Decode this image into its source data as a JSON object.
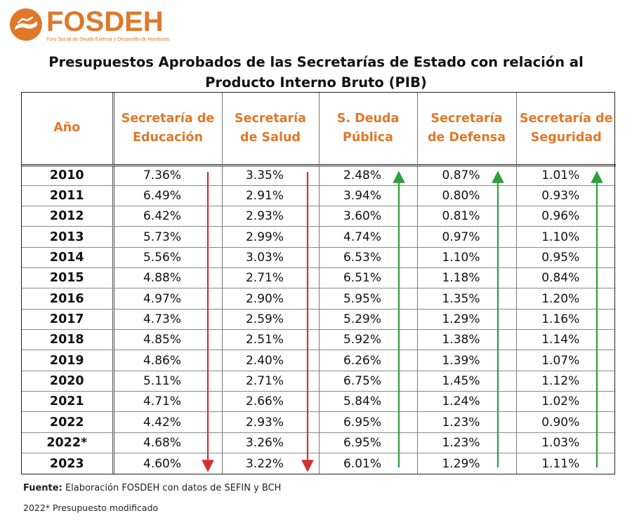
{
  "brand": {
    "name": "FOSDEH",
    "tagline": "Foro Social de Deuda Externa y Desarrollo de Honduras",
    "color": "#e0782a"
  },
  "title_line1": "Presupuestos Aprobados de las Secretarías de Estado con relación al",
  "title_line2": "Producto Interno Bruto (PIB)",
  "table": {
    "headers": [
      [
        "Año"
      ],
      [
        "Secretaría de",
        "Educación"
      ],
      [
        "Secretaría",
        "de Salud"
      ],
      [
        "S. Deuda",
        "Pública"
      ],
      [
        "Secretaría",
        "de Defensa"
      ],
      [
        "Secretaría de",
        "Seguridad"
      ]
    ],
    "rows": [
      [
        "2010",
        "7.36%",
        "3.35%",
        "2.48%",
        "0.87%",
        "1.01%"
      ],
      [
        "2011",
        "6.49%",
        "2.91%",
        "3.94%",
        "0.80%",
        "0.93%"
      ],
      [
        "2012",
        "6.42%",
        "2.93%",
        "3.60%",
        "0.81%",
        "0.96%"
      ],
      [
        "2013",
        "5.73%",
        "2.99%",
        "4.74%",
        "0.97%",
        "1.10%"
      ],
      [
        "2014",
        "5.56%",
        "3.03%",
        "6.53%",
        "1.10%",
        "0.95%"
      ],
      [
        "2015",
        "4.88%",
        "2.71%",
        "6.51%",
        "1.18%",
        "0.84%"
      ],
      [
        "2016",
        "4.97%",
        "2.90%",
        "5.95%",
        "1.35%",
        "1.20%"
      ],
      [
        "2017",
        "4.73%",
        "2.59%",
        "5.29%",
        "1.29%",
        "1.16%"
      ],
      [
        "2018",
        "4.85%",
        "2.51%",
        "5.92%",
        "1.38%",
        "1.14%"
      ],
      [
        "2019",
        "4.86%",
        "2.40%",
        "6.26%",
        "1.39%",
        "1.07%"
      ],
      [
        "2020",
        "5.11%",
        "2.71%",
        "6.75%",
        "1.45%",
        "1.12%"
      ],
      [
        "2021",
        "4.71%",
        "2.66%",
        "5.84%",
        "1.24%",
        "1.02%"
      ],
      [
        "2022",
        "4.42%",
        "2.93%",
        "6.95%",
        "1.23%",
        "0.90%"
      ],
      [
        "2022*",
        "4.68%",
        "3.26%",
        "6.95%",
        "1.23%",
        "1.03%"
      ],
      [
        "2023",
        "4.60%",
        "3.22%",
        "6.01%",
        "1.29%",
        "1.11%"
      ]
    ],
    "trend_arrows": [
      {
        "column": "Secretaría de Educación",
        "direction": "down",
        "color": "#d32f2f"
      },
      {
        "column": "Secretaría de Salud",
        "direction": "down",
        "color": "#d32f2f"
      },
      {
        "column": "S. Deuda Pública",
        "direction": "up",
        "color": "#2e9e3e"
      },
      {
        "column": "Secretaría de Defensa",
        "direction": "up",
        "color": "#2e9e3e"
      },
      {
        "column": "Secretaría de Seguridad",
        "direction": "up",
        "color": "#2e9e3e"
      }
    ]
  },
  "footer": {
    "source_label": "Fuente:",
    "source_text": "Elaboración FOSDEH con datos de SEFIN y BCH",
    "note": "2022* Presupuesto modificado"
  }
}
